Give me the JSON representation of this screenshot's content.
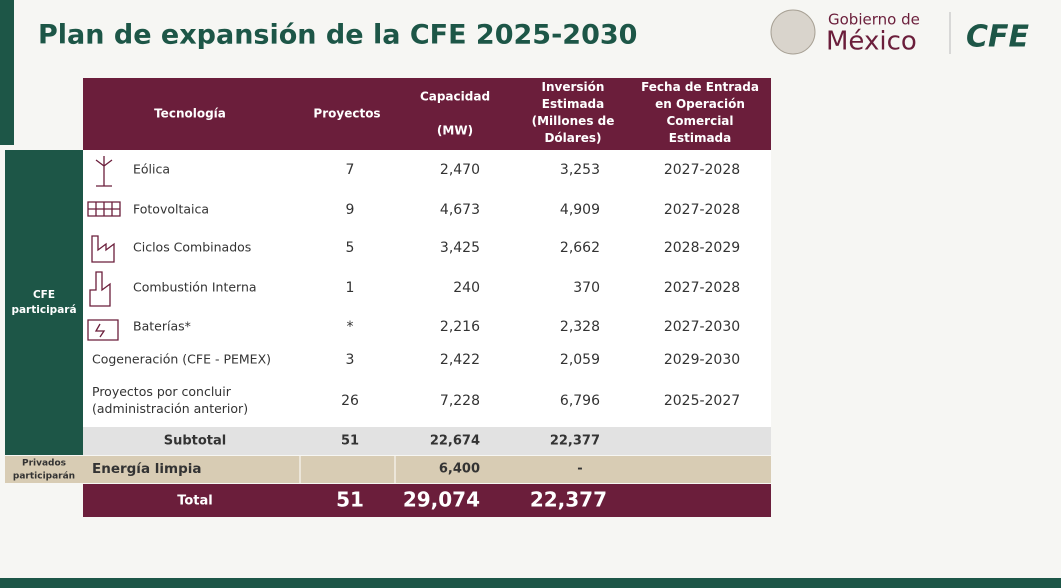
{
  "header": {
    "title": "Plan de expansión de la CFE 2025-2030",
    "logo": {
      "line1": "Gobierno de",
      "line2": "México",
      "brand": "CFE"
    }
  },
  "table": {
    "columns": [
      [
        "Tecnología"
      ],
      [
        "Proyectos"
      ],
      [
        "Capacidad",
        "(MW)"
      ],
      [
        "Inversión",
        "Estimada",
        "(Millones de",
        "Dólares)"
      ],
      [
        "Fecha de Entrada",
        "en Operación",
        "Comercial",
        "Estimada"
      ]
    ],
    "rows": [
      {
        "tech": [
          "Eólica"
        ],
        "proyectos": "7",
        "capacidad": "2,470",
        "inversion": "3,253",
        "fecha": "2027-2028"
      },
      {
        "tech": [
          "Fotovoltaica"
        ],
        "proyectos": "9",
        "capacidad": "4,673",
        "inversion": "4,909",
        "fecha": "2027-2028"
      },
      {
        "tech": [
          "Ciclos Combinados"
        ],
        "proyectos": "5",
        "capacidad": "3,425",
        "inversion": "2,662",
        "fecha": "2028-2029"
      },
      {
        "tech": [
          "Combustión Interna"
        ],
        "proyectos": "1",
        "capacidad": "240",
        "inversion": "370",
        "fecha": "2027-2028"
      },
      {
        "tech": [
          "Baterías*"
        ],
        "proyectos": "*",
        "capacidad": "2,216",
        "inversion": "2,328",
        "fecha": "2027-2030"
      },
      {
        "tech": [
          "Cogeneración (CFE - PEMEX)"
        ],
        "proyectos": "3",
        "capacidad": "2,422",
        "inversion": "2,059",
        "fecha": "2029-2030"
      },
      {
        "tech": [
          "Proyectos por concluir",
          "(administración anterior)"
        ],
        "proyectos": "26",
        "capacidad": "7,228",
        "inversion": "6,796",
        "fecha": "2025-2027"
      }
    ],
    "subtotal": {
      "label": "Subtotal",
      "proyectos": "51",
      "capacidad": "22,674",
      "inversion": "22,377"
    },
    "private_row": {
      "label": "Energía limpia",
      "capacidad": "6,400",
      "inversion": "-"
    },
    "total": {
      "label": "Total",
      "proyectos": "51",
      "capacidad": "29,074",
      "inversion": "22,377"
    }
  },
  "groups": {
    "cfe": [
      "CFE",
      "participará"
    ],
    "private": [
      "Privados",
      "participarán"
    ]
  }
}
